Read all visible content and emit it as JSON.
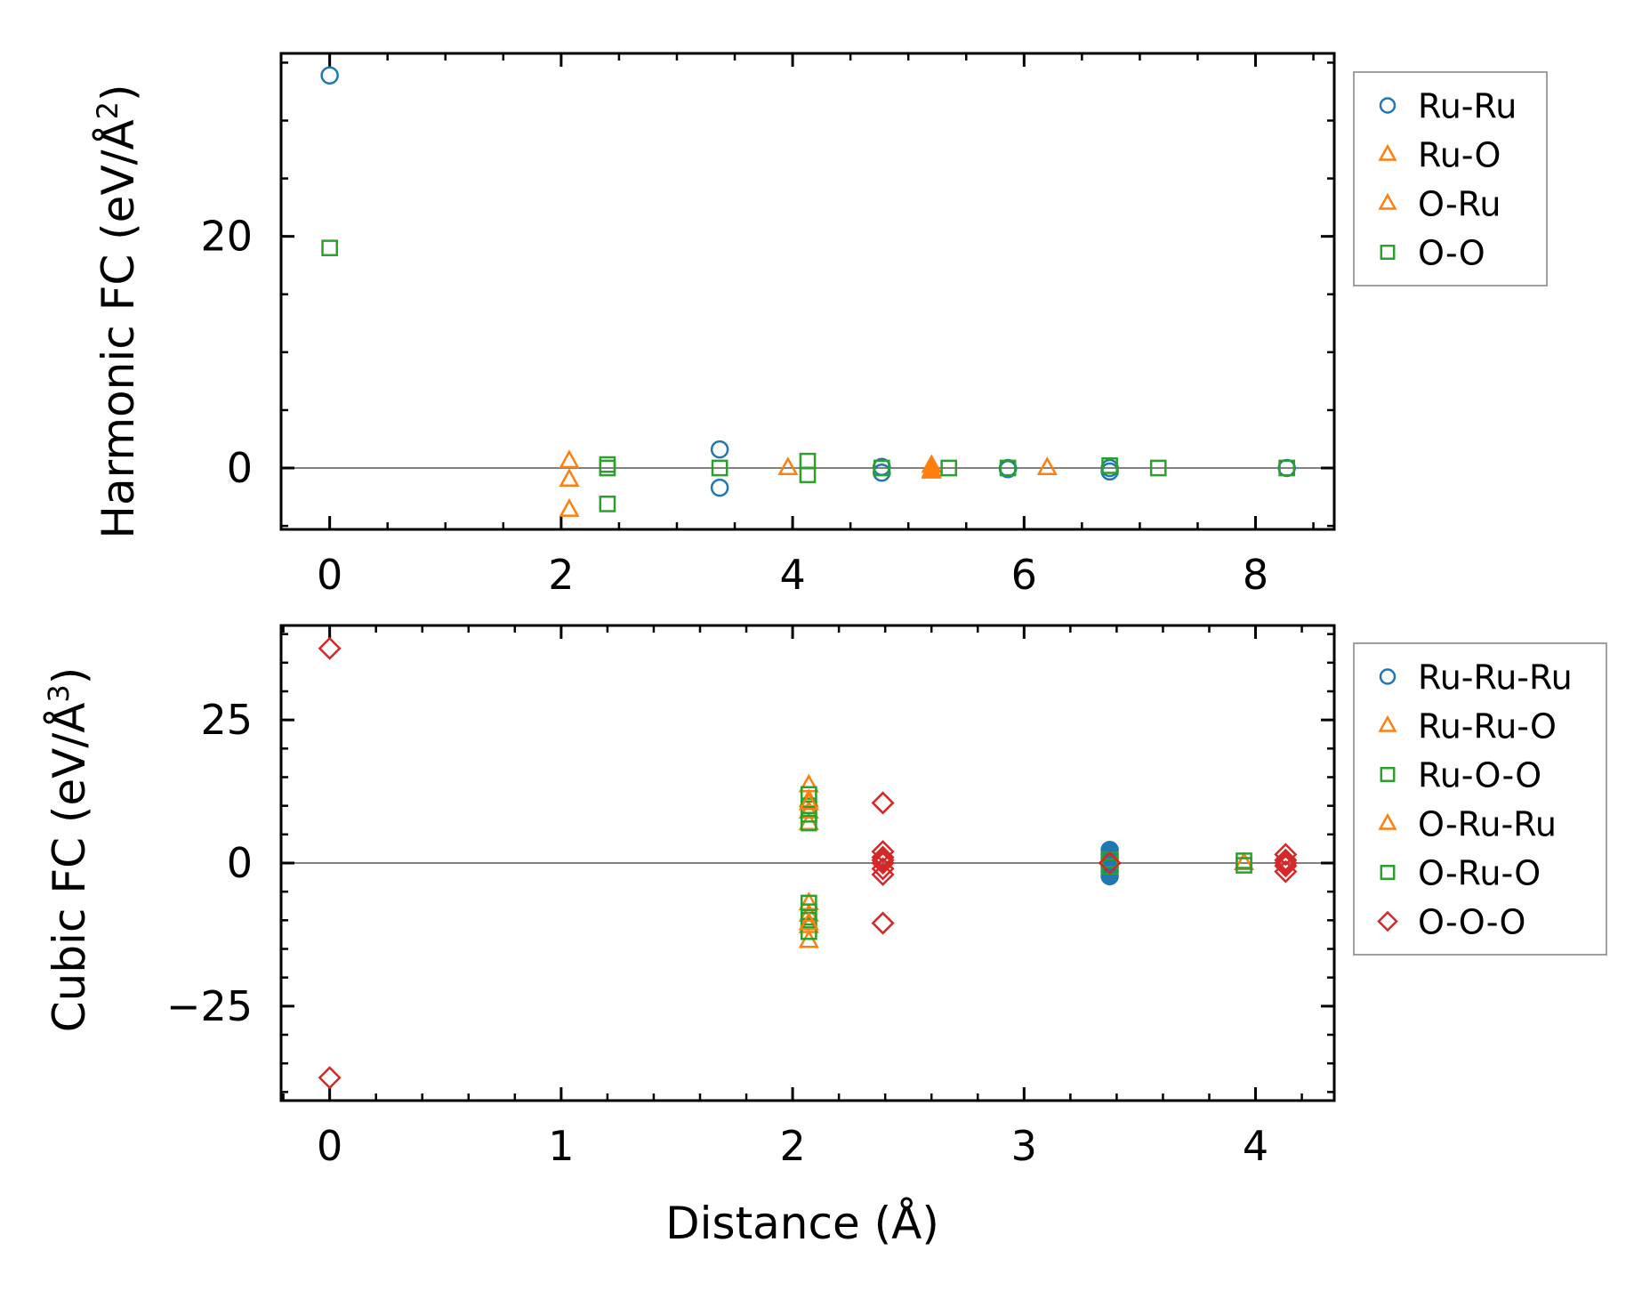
{
  "colors": {
    "blue": "#1f77b4",
    "orange": "#ff7f0e",
    "green": "#2ca02c",
    "red": "#d62728",
    "zero_line": "#808080",
    "legend_border": "#808080"
  },
  "chart_data": [
    {
      "type": "scatter",
      "ylabel_text": "Harmonic FC (eV/Å",
      "ylabel_sup": "2",
      "ylabel_close": ")",
      "xlabel": "",
      "xlim": [
        -0.42,
        8.68
      ],
      "ylim": [
        -5.3,
        35.8
      ],
      "xticks": [
        0,
        2,
        4,
        6,
        8
      ],
      "xtick_labels": [
        "0",
        "2",
        "4",
        "6",
        "8"
      ],
      "yticks": [
        0,
        20
      ],
      "ytick_labels": [
        "0",
        "20"
      ],
      "x_minor_step": 0.5,
      "y_minor_step": 5,
      "legend": [
        "Ru-Ru",
        "Ru-O",
        "O-Ru",
        "O-O"
      ],
      "legend_position": "outside-right-top",
      "series": [
        {
          "name": "Ru-Ru",
          "marker": "circle",
          "color": "blue",
          "filled": false,
          "x": [
            0,
            3.37,
            3.37,
            4.77,
            4.77,
            5.86,
            5.86,
            6.74,
            6.74,
            8.27
          ],
          "y": [
            33.9,
            1.6,
            -1.7,
            0.1,
            -0.4,
            0.0,
            -0.1,
            0.0,
            -0.3,
            0.0
          ]
        },
        {
          "name": "Ru-O",
          "marker": "triangle",
          "color": "orange",
          "filled": false,
          "x": [
            2.07,
            2.07,
            2.07,
            3.96,
            5.2,
            6.2
          ],
          "y": [
            0.6,
            -1.0,
            -3.6,
            0.0,
            -0.2,
            0.0
          ]
        },
        {
          "name": "O-Ru",
          "marker": "triangle",
          "color": "orange",
          "filled": true,
          "x": [
            5.2,
            5.2
          ],
          "y": [
            0.2,
            -0.3
          ]
        },
        {
          "name": "O-O",
          "marker": "square",
          "color": "green",
          "filled": false,
          "x": [
            0,
            2.4,
            2.4,
            2.4,
            3.37,
            4.13,
            4.13,
            4.77,
            5.35,
            5.86,
            6.74,
            7.16,
            8.27
          ],
          "y": [
            19.0,
            0.3,
            0.0,
            -3.1,
            0.0,
            0.6,
            -0.6,
            0.0,
            0.0,
            0.0,
            0.2,
            0.0,
            0.0
          ]
        }
      ]
    },
    {
      "type": "scatter",
      "ylabel_text": "Cubic FC (eV/Å",
      "ylabel_sup": "3",
      "ylabel_close": ")",
      "xlabel": "Distance (Å)",
      "xlim": [
        -0.21,
        4.34
      ],
      "ylim": [
        -41.5,
        41.5
      ],
      "xticks": [
        0,
        1,
        2,
        3,
        4
      ],
      "xtick_labels": [
        "0",
        "1",
        "2",
        "3",
        "4"
      ],
      "yticks": [
        -25,
        0,
        25
      ],
      "ytick_labels": [
        "−25",
        "0",
        "25"
      ],
      "x_minor_step": 0.2,
      "y_minor_step": 5,
      "legend": [
        "Ru-Ru-Ru",
        "Ru-Ru-O",
        "Ru-O-O",
        "O-Ru-Ru",
        "O-Ru-O",
        "O-O-O"
      ],
      "legend_position": "outside-right-top",
      "series": [
        {
          "name": "Ru-Ru-Ru",
          "marker": "circle",
          "color": "blue",
          "filled": true,
          "x": [
            3.37,
            3.37,
            3.37,
            3.37,
            3.37,
            3.37,
            3.37
          ],
          "y": [
            2.3,
            1.5,
            0.8,
            0.0,
            -0.8,
            -1.5,
            -2.3
          ]
        },
        {
          "name": "Ru-Ru-O",
          "marker": "triangle",
          "color": "orange",
          "filled": false,
          "x": [
            2.07,
            2.07,
            2.07,
            2.07,
            2.07,
            2.07,
            2.07,
            2.07,
            3.95
          ],
          "y": [
            13.6,
            11.0,
            9.0,
            7.0,
            -7.0,
            -9.0,
            -11.0,
            -13.6,
            0.0
          ]
        },
        {
          "name": "Ru-O-O",
          "marker": "square",
          "color": "green",
          "filled": false,
          "x": [
            2.07,
            2.07,
            2.07,
            2.07,
            2.07,
            2.07,
            2.07,
            2.07,
            3.95,
            3.95
          ],
          "y": [
            12.0,
            10.0,
            8.5,
            7.0,
            -7.0,
            -8.5,
            -10.0,
            -12.0,
            0.4,
            -0.4
          ]
        },
        {
          "name": "O-Ru-Ru",
          "marker": "triangle",
          "color": "orange",
          "filled": false,
          "x": [
            2.07,
            2.07
          ],
          "y": [
            10.5,
            -10.5
          ]
        },
        {
          "name": "O-Ru-O",
          "marker": "square",
          "color": "green",
          "filled": false,
          "x": [
            3.37,
            3.37
          ],
          "y": [
            0.6,
            -0.6
          ]
        },
        {
          "name": "O-O-O",
          "marker": "diamond",
          "color": "red",
          "filled": false,
          "x": [
            0,
            0,
            2.39,
            2.39,
            2.39,
            2.39,
            2.39,
            2.39,
            2.39,
            2.39,
            3.37,
            4.13,
            4.13,
            4.13,
            4.13,
            4.13
          ],
          "y": [
            37.5,
            -37.5,
            10.5,
            -10.5,
            2.0,
            1.0,
            0.0,
            -1.0,
            -2.0,
            0.5,
            0.0,
            1.5,
            0.5,
            0.0,
            -0.5,
            -1.5
          ]
        }
      ]
    }
  ]
}
